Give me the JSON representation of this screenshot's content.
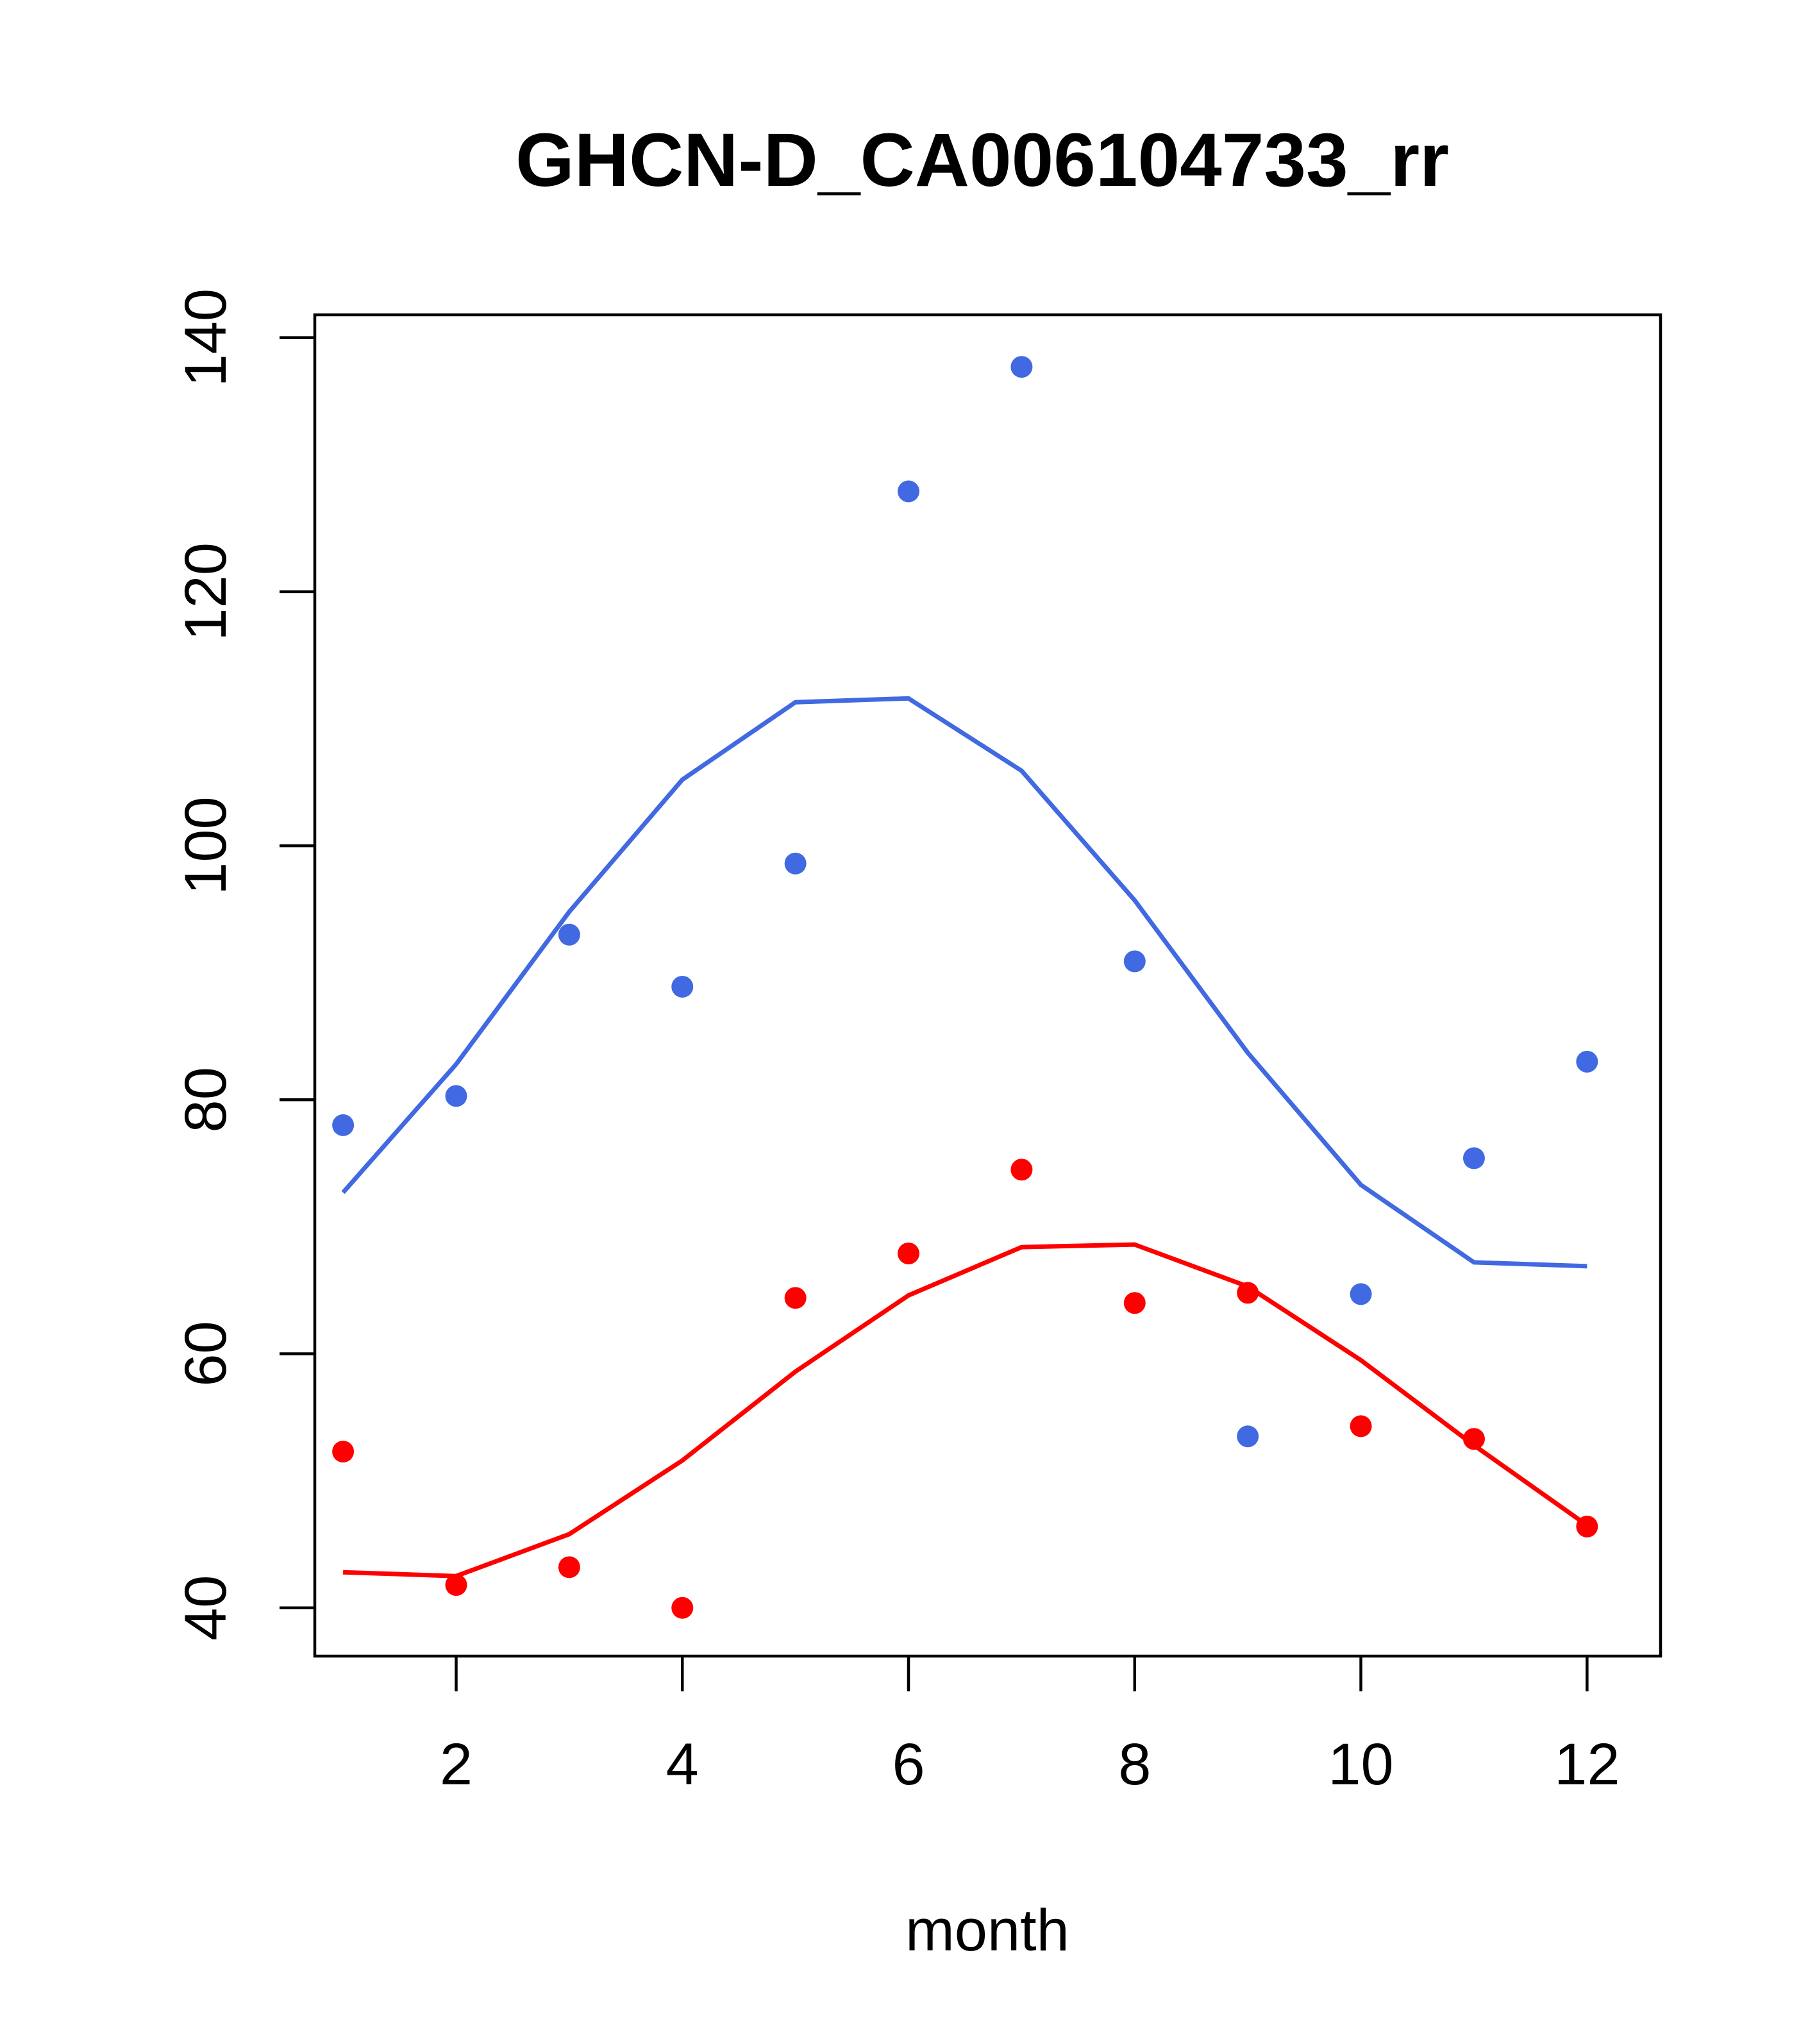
{
  "chart_data": {
    "type": "scatter",
    "title": "GHCN-D_CA006104733_rr",
    "xlabel": "month",
    "ylabel": "",
    "xlim": [
      0.75,
      12.65
    ],
    "ylim": [
      36.2,
      141.8
    ],
    "xticks": [
      2,
      4,
      6,
      8,
      10,
      12
    ],
    "yticks": [
      40,
      60,
      80,
      100,
      120,
      140
    ],
    "grid": false,
    "legend": "none",
    "x": [
      1,
      2,
      3,
      4,
      5,
      6,
      7,
      8,
      9,
      10,
      11,
      12
    ],
    "series": [
      {
        "kind": "points",
        "color": "#4169e1",
        "values": [
          78.0,
          80.3,
          93.0,
          88.9,
          98.6,
          127.9,
          137.7,
          90.9,
          53.5,
          64.7,
          75.4,
          83.0
        ]
      },
      {
        "kind": "line",
        "color": "#4169e1",
        "values": [
          72.7,
          82.8,
          94.8,
          105.2,
          111.3,
          111.6,
          105.9,
          95.7,
          83.7,
          73.3,
          67.2,
          66.9
        ]
      },
      {
        "kind": "points",
        "color": "#ff0000",
        "values": [
          52.3,
          41.8,
          43.2,
          40.0,
          64.4,
          67.9,
          74.5,
          64.0,
          64.8,
          54.3,
          53.3,
          46.4
        ]
      },
      {
        "kind": "line",
        "color": "#ff0000",
        "values": [
          42.8,
          42.5,
          45.8,
          51.6,
          58.6,
          64.6,
          68.4,
          68.6,
          65.3,
          59.5,
          52.8,
          46.5
        ]
      }
    ]
  }
}
